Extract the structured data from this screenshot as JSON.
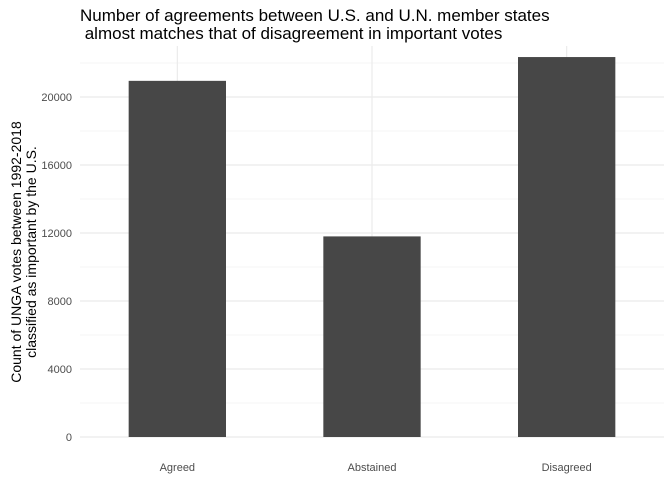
{
  "chart_data": {
    "type": "bar",
    "title_lines": [
      "Number of agreements between U.S. and U.N. member states",
      " almost matches that of disagreement in important votes"
    ],
    "xlabel": "",
    "ylabel_lines": [
      "Count of UNGA votes between 1992-2018",
      "classified as important by the U.S."
    ],
    "categories": [
      "Agreed",
      "Abstained",
      "Disagreed"
    ],
    "values": [
      20950,
      11800,
      22350
    ],
    "ylim": [
      0,
      23000
    ],
    "yticks": [
      0,
      4000,
      8000,
      12000,
      16000,
      20000
    ],
    "ytick_labels": [
      "0",
      "4000",
      "8000",
      "12000",
      "16000",
      "20000"
    ],
    "grid": true,
    "bar_color": "#474747",
    "grid_color": "#ebebeb"
  }
}
